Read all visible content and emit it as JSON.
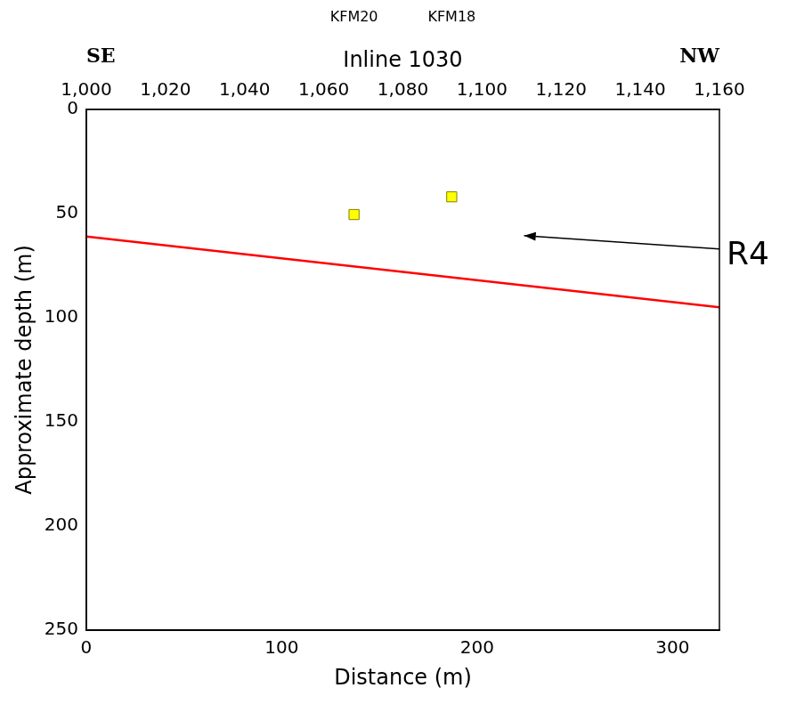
{
  "chart_data": {
    "type": "scatter",
    "x2label": "Inline 1030",
    "xlabel": "Distance (m)",
    "ylabel": "Approximate depth (m)",
    "xlim": [
      0,
      324
    ],
    "xticks": [
      0,
      100,
      200,
      300
    ],
    "x2lim": [
      1000,
      1160
    ],
    "x2ticks": [
      1000,
      1020,
      1040,
      1060,
      1080,
      1100,
      1120,
      1140,
      1160
    ],
    "ylim": [
      250,
      0
    ],
    "yticks": [
      0,
      50,
      100,
      150,
      200,
      250
    ],
    "grid": false,
    "corner_labels": {
      "left": "SE",
      "right": "NW"
    },
    "series": [
      {
        "type": "line",
        "color": "#ff0000",
        "line_style": "solid",
        "x": [
          0,
          324
        ],
        "values": [
          61,
          95
        ]
      },
      {
        "type": "scatter",
        "color": "#ffff00",
        "marker": "square",
        "x": [
          137,
          187
        ],
        "values": [
          50.5,
          42
        ],
        "labels": [
          "KFM20",
          "KFM18"
        ]
      }
    ],
    "annotations": [
      {
        "text": "R4",
        "x": 224,
        "y": 60.6,
        "from_x": 324,
        "from_y": 67
      }
    ]
  }
}
